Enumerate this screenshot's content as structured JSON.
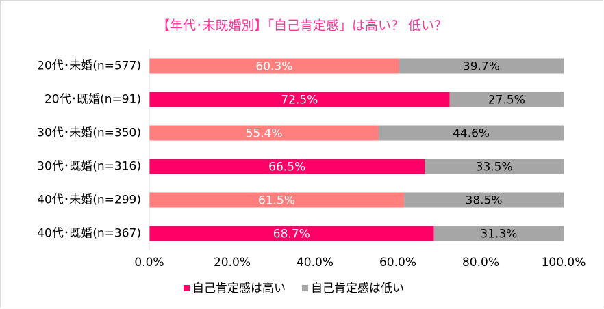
{
  "chart_data": {
    "type": "stacked-bar-horizontal",
    "title": "【年代･未既婚別】「自己肯定感」は高い？ 低い？",
    "categories": [
      "20代･未婚(n=577)",
      "20代･既婚(n=91)",
      "30代･未婚(n=350)",
      "30代･既婚(n=316)",
      "40代･未婚(n=299)",
      "40代･既婚(n=367)"
    ],
    "series": [
      {
        "name": "自己肯定感は高い",
        "color": "#FF0066",
        "point_colors": [
          "#FF7F7F",
          "#FF0066",
          "#FF7F7F",
          "#FF0066",
          "#FF7F7F",
          "#FF0066"
        ],
        "label_color": "#FFFFFF",
        "values": [
          60.3,
          72.5,
          55.4,
          66.5,
          61.5,
          68.7
        ],
        "value_labels": [
          "60.3%",
          "72.5%",
          "55.4%",
          "66.5%",
          "61.5%",
          "68.7%"
        ]
      },
      {
        "name": "自己肯定感は低い",
        "color": "#A6A6A6",
        "label_color": "#000000",
        "values": [
          39.7,
          27.5,
          44.6,
          33.5,
          38.5,
          31.3
        ],
        "value_labels": [
          "39.7%",
          "27.5%",
          "44.6%",
          "33.5%",
          "38.5%",
          "31.3%"
        ]
      }
    ],
    "xlim": [
      0,
      100
    ],
    "xticks": [
      {
        "value": 0,
        "label": "0.0%"
      },
      {
        "value": 20,
        "label": "20.0%"
      },
      {
        "value": 40,
        "label": "40.0%"
      },
      {
        "value": 60,
        "label": "60.0%"
      },
      {
        "value": 80,
        "label": "80.0%"
      },
      {
        "value": 100,
        "label": "100.0%"
      }
    ],
    "legend": "bottom"
  }
}
